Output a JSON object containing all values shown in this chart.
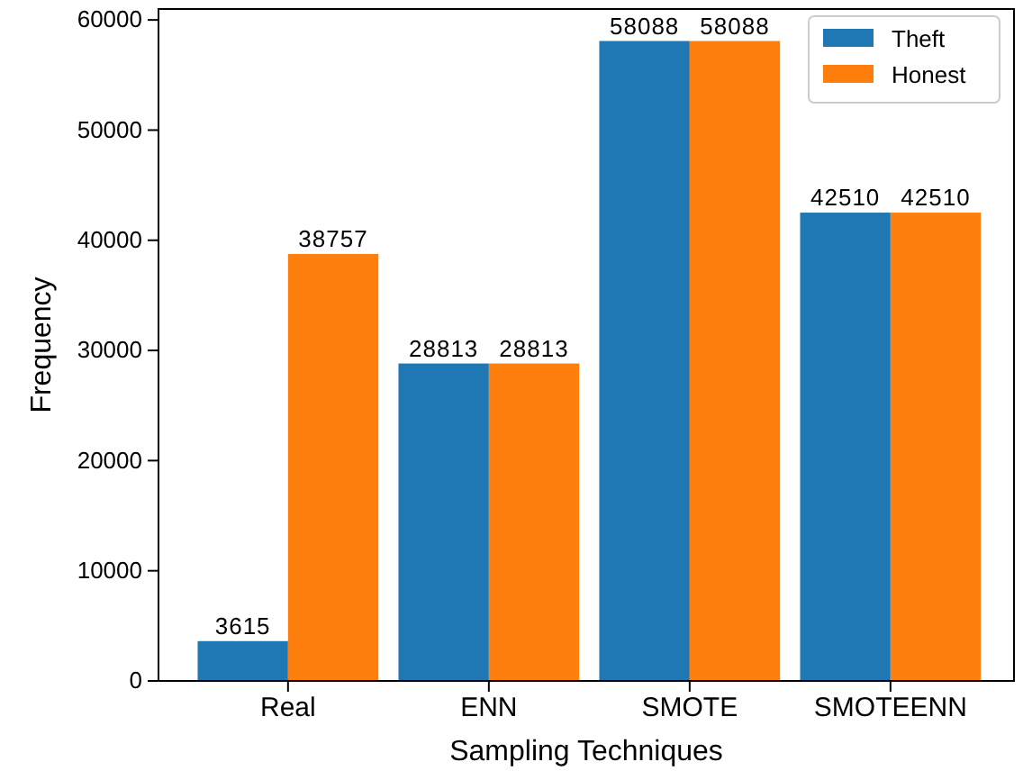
{
  "chart_data": {
    "type": "bar",
    "xlabel": "Sampling Techniques",
    "ylabel": "Frequency",
    "categories": [
      "Real",
      "ENN",
      "SMOTE",
      "SMOTEENN"
    ],
    "series": [
      {
        "name": "Theft",
        "color": "#1f77b4",
        "values": [
          3615,
          28813,
          58088,
          42510
        ]
      },
      {
        "name": "Honest",
        "color": "#ff7f0e",
        "values": [
          38757,
          28813,
          58088,
          42510
        ]
      }
    ],
    "ylim": [
      0,
      60992
    ],
    "yticks": [
      0,
      10000,
      20000,
      30000,
      40000,
      50000,
      60000
    ],
    "data_labels": true,
    "legend": "top right",
    "grid": false
  }
}
